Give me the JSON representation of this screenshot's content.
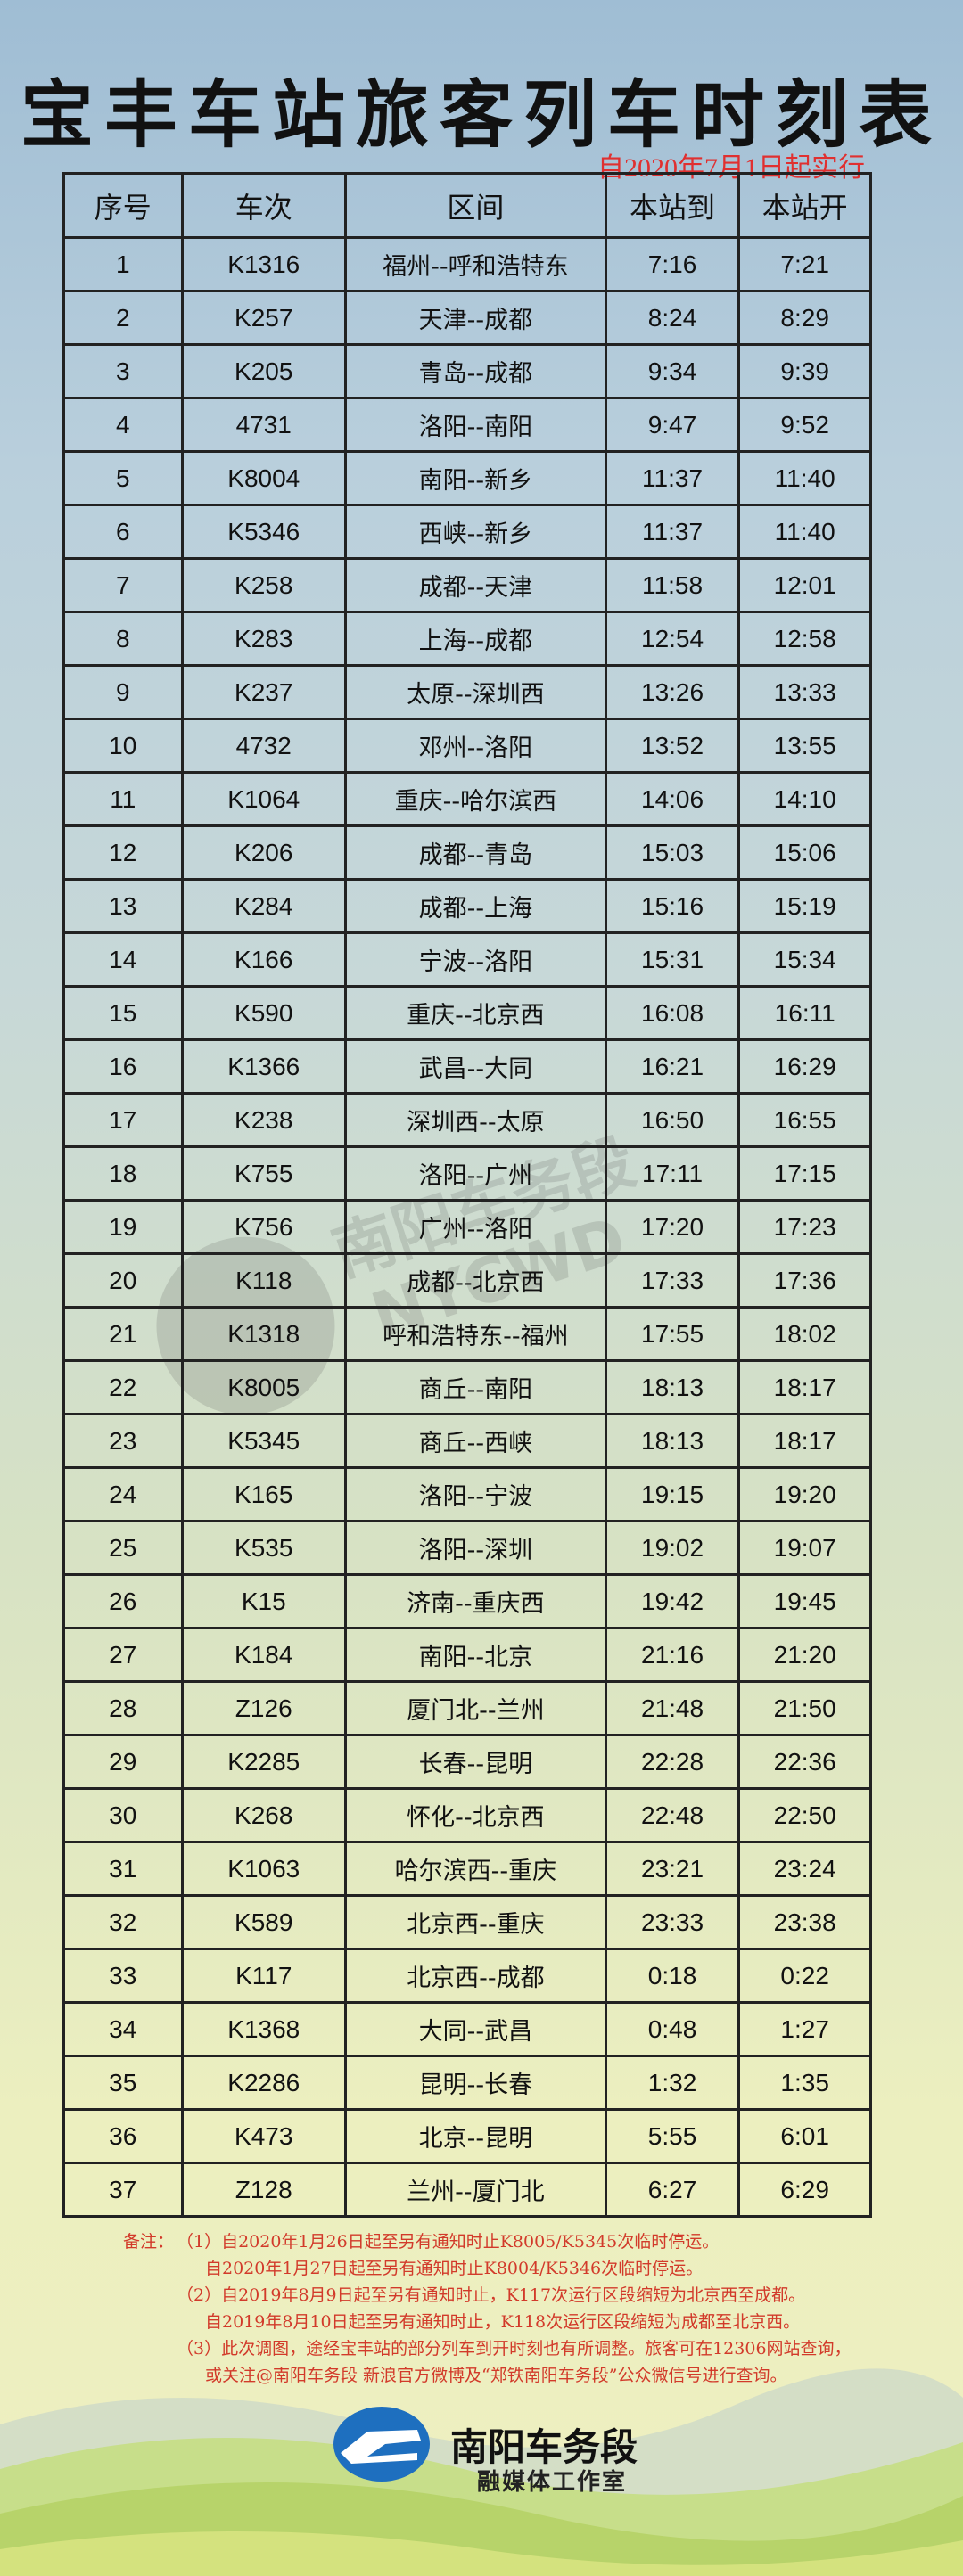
{
  "title": "宝丰车站旅客列车时刻表",
  "effective_date": "自2020年7月1日起实行",
  "columns": [
    "序号",
    "车次",
    "区间",
    "本站到",
    "本站开"
  ],
  "rows": [
    [
      "1",
      "K1316",
      "福州--呼和浩特东",
      "7:16",
      "7:21"
    ],
    [
      "2",
      "K257",
      "天津--成都",
      "8:24",
      "8:29"
    ],
    [
      "3",
      "K205",
      "青岛--成都",
      "9:34",
      "9:39"
    ],
    [
      "4",
      "4731",
      "洛阳--南阳",
      "9:47",
      "9:52"
    ],
    [
      "5",
      "K8004",
      "南阳--新乡",
      "11:37",
      "11:40"
    ],
    [
      "6",
      "K5346",
      "西峡--新乡",
      "11:37",
      "11:40"
    ],
    [
      "7",
      "K258",
      "成都--天津",
      "11:58",
      "12:01"
    ],
    [
      "8",
      "K283",
      "上海--成都",
      "12:54",
      "12:58"
    ],
    [
      "9",
      "K237",
      "太原--深圳西",
      "13:26",
      "13:33"
    ],
    [
      "10",
      "4732",
      "邓州--洛阳",
      "13:52",
      "13:55"
    ],
    [
      "11",
      "K1064",
      "重庆--哈尔滨西",
      "14:06",
      "14:10"
    ],
    [
      "12",
      "K206",
      "成都--青岛",
      "15:03",
      "15:06"
    ],
    [
      "13",
      "K284",
      "成都--上海",
      "15:16",
      "15:19"
    ],
    [
      "14",
      "K166",
      "宁波--洛阳",
      "15:31",
      "15:34"
    ],
    [
      "15",
      "K590",
      "重庆--北京西",
      "16:08",
      "16:11"
    ],
    [
      "16",
      "K1366",
      "武昌--大同",
      "16:21",
      "16:29"
    ],
    [
      "17",
      "K238",
      "深圳西--太原",
      "16:50",
      "16:55"
    ],
    [
      "18",
      "K755",
      "洛阳--广州",
      "17:11",
      "17:15"
    ],
    [
      "19",
      "K756",
      "广州--洛阳",
      "17:20",
      "17:23"
    ],
    [
      "20",
      "K118",
      "成都--北京西",
      "17:33",
      "17:36"
    ],
    [
      "21",
      "K1318",
      "呼和浩特东--福州",
      "17:55",
      "18:02"
    ],
    [
      "22",
      "K8005",
      "商丘--南阳",
      "18:13",
      "18:17"
    ],
    [
      "23",
      "K5345",
      "商丘--西峡",
      "18:13",
      "18:17"
    ],
    [
      "24",
      "K165",
      "洛阳--宁波",
      "19:15",
      "19:20"
    ],
    [
      "25",
      "K535",
      "洛阳--深圳",
      "19:02",
      "19:07"
    ],
    [
      "26",
      "K15",
      "济南--重庆西",
      "19:42",
      "19:45"
    ],
    [
      "27",
      "K184",
      "南阳--北京",
      "21:16",
      "21:20"
    ],
    [
      "28",
      "Z126",
      "厦门北--兰州",
      "21:48",
      "21:50"
    ],
    [
      "29",
      "K2285",
      "长春--昆明",
      "22:28",
      "22:36"
    ],
    [
      "30",
      "K268",
      "怀化--北京西",
      "22:48",
      "22:50"
    ],
    [
      "31",
      "K1063",
      "哈尔滨西--重庆",
      "23:21",
      "23:24"
    ],
    [
      "32",
      "K589",
      "北京西--重庆",
      "23:33",
      "23:38"
    ],
    [
      "33",
      "K117",
      "北京西--成都",
      "0:18",
      "0:22"
    ],
    [
      "34",
      "K1368",
      "大同--武昌",
      "0:48",
      "1:27"
    ],
    [
      "35",
      "K2286",
      "昆明--长春",
      "1:32",
      "1:35"
    ],
    [
      "36",
      "K473",
      "北京--昆明",
      "5:55",
      "6:01"
    ],
    [
      "37",
      "Z128",
      "兰州--厦门北",
      "6:27",
      "6:29"
    ]
  ],
  "notes": {
    "label": "备注：",
    "n1a": "（1）自2020年1月26日起至另有通知时止K8005/K5345次临时停运。",
    "n1b": "自2020年1月27日起至另有通知时止K8004/K5346次临时停运。",
    "n2a": "（2）自2019年8月9日起至另有通知时止，K117次运行区段缩短为北京西至成都。",
    "n2b": "自2019年8月10日起至另有通知时止，K118次运行区段缩短为成都至北京西。",
    "n3a": "（3）此次调图，途经宝丰站的部分列车到开时刻也有所调整。旅客可在12306网站查询，",
    "n3b": "或关注@南阳车务段 新浪官方微博及“郑铁南阳车务段”公众微信号进行查询。"
  },
  "footer": {
    "org": "南阳车务段",
    "studio": "融媒体工作室",
    "watermark": "南阳车务段 NYCWD"
  },
  "colors": {
    "notes": "#d23a2a",
    "logo": "#1e6fbf"
  }
}
